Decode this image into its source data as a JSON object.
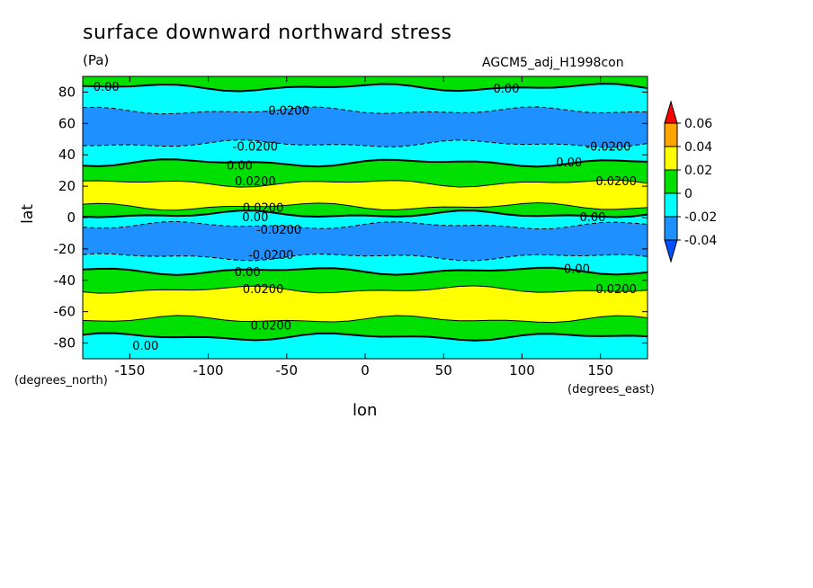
{
  "chart_data": {
    "type": "heatmap",
    "title": "surface downward northward stress",
    "units": "(Pa)",
    "run_name": "AGCM5_adj_H1998con",
    "xlabel": "lon",
    "ylabel": "lat",
    "x_unit": "(degrees_east)",
    "y_unit": "(degrees_north)",
    "xlim": [
      -180,
      180
    ],
    "ylim": [
      -90,
      90
    ],
    "x_ticks": [
      -150,
      -100,
      -50,
      0,
      50,
      100,
      150
    ],
    "y_ticks": [
      80,
      60,
      40,
      20,
      0,
      -20,
      -40,
      -60,
      -80
    ],
    "x_tick_labels": [
      "-150",
      "-100",
      "-50",
      "0",
      "50",
      "100",
      "150"
    ],
    "y_tick_labels": [
      "80",
      "60",
      "40",
      "20",
      "0",
      "-20",
      "-40",
      "-60",
      "-80"
    ],
    "colorbar": {
      "levels": [
        "0.06",
        "0.04",
        "0.02",
        "0",
        "-0.02",
        "-0.04"
      ],
      "colors": [
        "#ff0000",
        "#ffa500",
        "#ffff00",
        "#00e000",
        "#00ffff",
        "#1e90ff",
        "#0050ff"
      ]
    },
    "bands": [
      {
        "lat_from": 90,
        "lat_to": 83,
        "level": "0 to 0.02",
        "color": "#00e000"
      },
      {
        "lat_from": 83,
        "lat_to": 68,
        "level": "-0.02 to 0",
        "color": "#00ffff"
      },
      {
        "lat_from": 68,
        "lat_to": 47,
        "level": "-0.04 to -0.02",
        "color": "#1e90ff"
      },
      {
        "lat_from": 47,
        "lat_to": 35,
        "level": "-0.02 to 0",
        "color": "#00ffff"
      },
      {
        "lat_from": 35,
        "lat_to": 22,
        "level": "0 to 0.02",
        "color": "#00e000"
      },
      {
        "lat_from": 22,
        "lat_to": 7,
        "level": "0.02 to 0.04",
        "color": "#ffff00"
      },
      {
        "lat_from": 7,
        "lat_to": 2,
        "level": "0 to 0.02",
        "color": "#00e000"
      },
      {
        "lat_from": 2,
        "lat_to": -5,
        "level": "-0.02 to 0",
        "color": "#00ffff"
      },
      {
        "lat_from": -5,
        "lat_to": -25,
        "level": "-0.04 to -0.02",
        "color": "#1e90ff"
      },
      {
        "lat_from": -25,
        "lat_to": -34,
        "level": "-0.02 to 0",
        "color": "#00ffff"
      },
      {
        "lat_from": -34,
        "lat_to": -46,
        "level": "0 to 0.02",
        "color": "#00e000"
      },
      {
        "lat_from": -46,
        "lat_to": -65,
        "level": "0.02 to 0.04",
        "color": "#ffff00"
      },
      {
        "lat_from": -65,
        "lat_to": -76,
        "level": "0 to 0.02",
        "color": "#00e000"
      },
      {
        "lat_from": -76,
        "lat_to": -90,
        "level": "-0.02 to 0",
        "color": "#00ffff"
      }
    ],
    "contour_labels": [
      {
        "text": "0.00",
        "lon": -165,
        "lat": 83
      },
      {
        "text": "0.00",
        "lon": 90,
        "lat": 82
      },
      {
        "text": "-0.0200",
        "lon": -50,
        "lat": 68
      },
      {
        "text": "-0.0200",
        "lon": -70,
        "lat": 45
      },
      {
        "text": "-0.0200",
        "lon": 155,
        "lat": 45
      },
      {
        "text": "0.00",
        "lon": -80,
        "lat": 33
      },
      {
        "text": "0.00",
        "lon": 130,
        "lat": 35
      },
      {
        "text": "0.0200",
        "lon": -70,
        "lat": 23
      },
      {
        "text": "0.0200",
        "lon": 160,
        "lat": 23
      },
      {
        "text": "0.0200",
        "lon": -65,
        "lat": 6
      },
      {
        "text": "0.00",
        "lon": -70,
        "lat": 0
      },
      {
        "text": "-0.0200",
        "lon": -55,
        "lat": -8
      },
      {
        "text": "0.00",
        "lon": 145,
        "lat": 0
      },
      {
        "text": "-0.0200",
        "lon": -60,
        "lat": -24
      },
      {
        "text": "0.00",
        "lon": -75,
        "lat": -35
      },
      {
        "text": "0.00",
        "lon": 135,
        "lat": -33
      },
      {
        "text": "0.0200",
        "lon": -65,
        "lat": -46
      },
      {
        "text": "0.0200",
        "lon": 160,
        "lat": -46
      },
      {
        "text": "0.0200",
        "lon": -60,
        "lat": -69
      },
      {
        "text": "0.00",
        "lon": -140,
        "lat": -82
      }
    ],
    "grid": false
  }
}
